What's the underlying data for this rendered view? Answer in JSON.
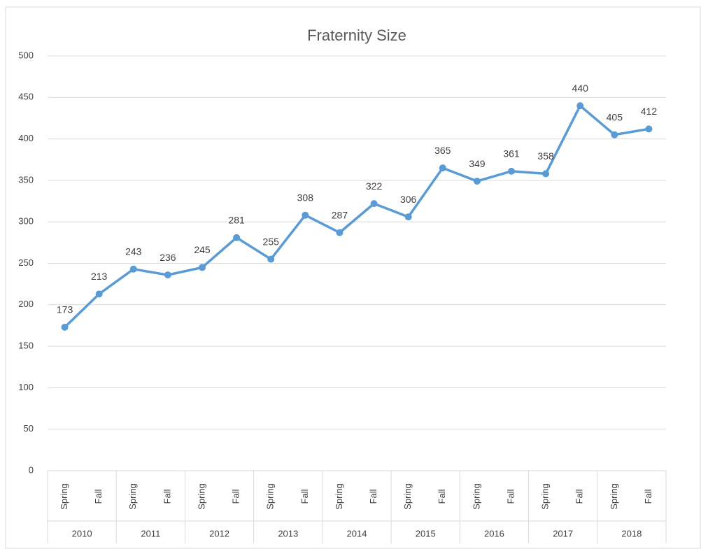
{
  "chart_data": {
    "type": "line",
    "title": "Fraternity Size",
    "categories": [
      "Spring",
      "Fall",
      "Spring",
      "Fall",
      "Spring",
      "Fall",
      "Spring",
      "Fall",
      "Spring",
      "Fall",
      "Spring",
      "Fall",
      "Spring",
      "Fall",
      "Spring",
      "Fall",
      "Spring",
      "Fall"
    ],
    "category_groups": [
      "2010",
      "2011",
      "2012",
      "2013",
      "2014",
      "2015",
      "2016",
      "2017",
      "2018"
    ],
    "values": [
      173,
      213,
      243,
      236,
      245,
      281,
      255,
      308,
      287,
      322,
      306,
      365,
      349,
      361,
      358,
      440,
      405,
      412
    ],
    "color": "#5b9bd5",
    "ylim": [
      0,
      500
    ],
    "yticks": [
      0,
      50,
      100,
      150,
      200,
      250,
      300,
      350,
      400,
      450,
      500
    ],
    "grid": true
  }
}
